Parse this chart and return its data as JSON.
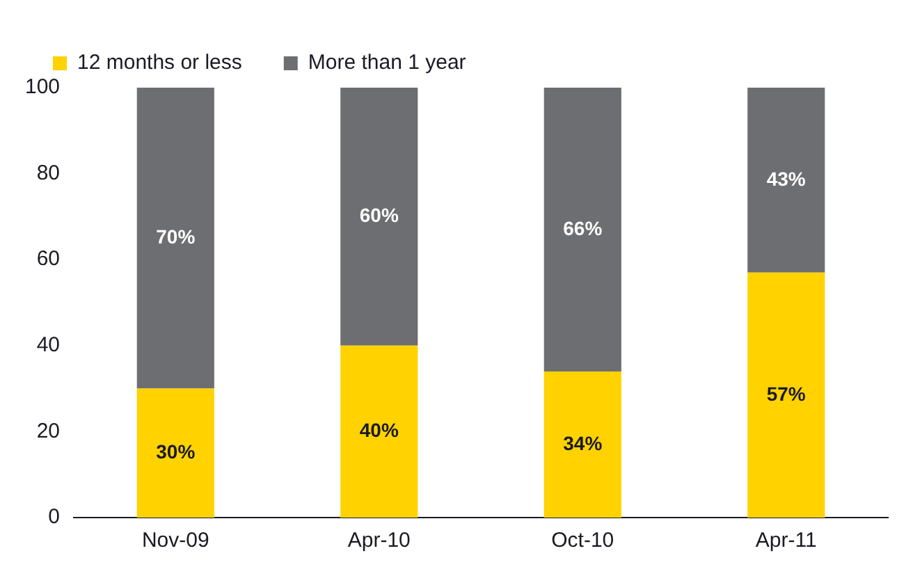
{
  "chart_data": {
    "type": "bar",
    "stacked": true,
    "categories": [
      "Nov-09",
      "Apr-10",
      "Oct-10",
      "Apr-11"
    ],
    "series": [
      {
        "name": "12 months or less",
        "color": "#ffd200",
        "values": [
          30,
          40,
          34,
          57
        ],
        "value_labels": [
          "30%",
          "40%",
          "34%",
          "57%"
        ]
      },
      {
        "name": "More than 1 year",
        "color": "#6d6e71",
        "values": [
          70,
          60,
          66,
          43
        ],
        "value_labels": [
          "70%",
          "60%",
          "66%",
          "43%"
        ]
      }
    ],
    "ylim": [
      0,
      100
    ],
    "yticks": [
      0,
      20,
      40,
      60,
      80,
      100
    ],
    "grid": false,
    "legend": "top left"
  }
}
